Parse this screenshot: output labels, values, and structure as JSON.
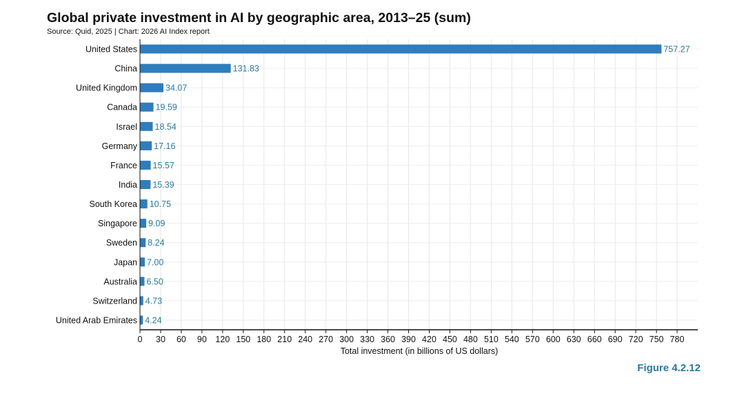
{
  "chart_data": {
    "type": "bar",
    "orientation": "horizontal",
    "title": "Global private investment in AI by geographic area, 2013–25 (sum)",
    "subtitle": "Source: Quid, 2025 | Chart: 2026 AI Index report",
    "xlabel": "Total investment (in billions of US dollars)",
    "ylabel": "",
    "categories": [
      "United States",
      "China",
      "United Kingdom",
      "Canada",
      "Israel",
      "Germany",
      "France",
      "India",
      "South Korea",
      "Singapore",
      "Sweden",
      "Japan",
      "Australia",
      "Switzerland",
      "United Arab Emirates"
    ],
    "values": [
      757.27,
      131.83,
      34.07,
      19.59,
      18.54,
      17.16,
      15.57,
      15.39,
      10.75,
      9.09,
      8.24,
      7.0,
      6.5,
      4.73,
      4.24
    ],
    "value_labels": [
      "757.27",
      "131.83",
      "34.07",
      "19.59",
      "18.54",
      "17.16",
      "15.57",
      "15.39",
      "10.75",
      "9.09",
      "8.24",
      "7.00",
      "6.50",
      "4.73",
      "4.24"
    ],
    "xlim": [
      0,
      810
    ],
    "xticks": [
      0,
      30,
      60,
      90,
      120,
      150,
      180,
      210,
      240,
      270,
      300,
      330,
      360,
      390,
      420,
      450,
      480,
      510,
      540,
      570,
      600,
      630,
      660,
      690,
      720,
      750,
      780
    ],
    "grid": true,
    "bar_color": "#2f7dbd",
    "label_color": "#2a7a9b"
  },
  "figure_label": "Figure 4.2.12"
}
